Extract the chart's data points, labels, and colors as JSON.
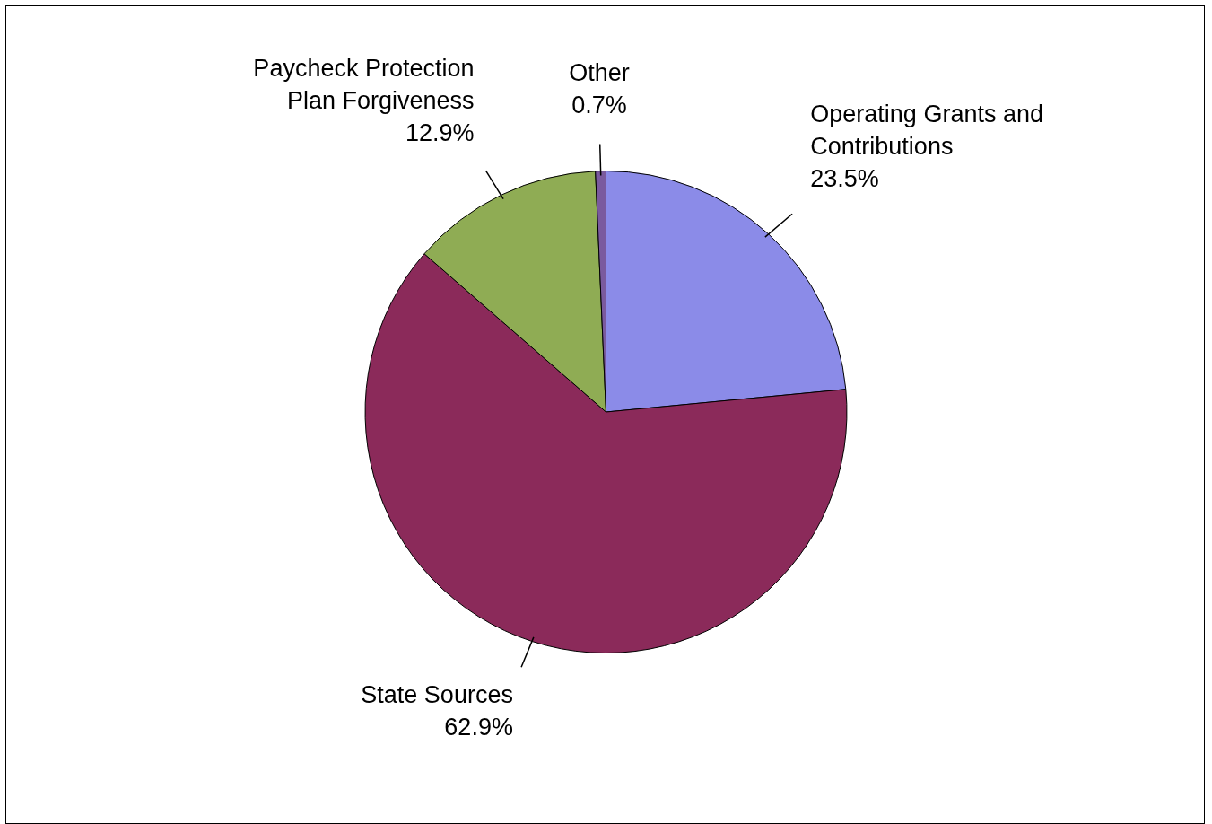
{
  "chart_data": {
    "type": "pie",
    "categories": [
      "Operating Grants and Contributions",
      "State Sources",
      "Paycheck Protection Plan Forgiveness",
      "Other"
    ],
    "values": [
      23.5,
      62.9,
      12.9,
      0.7
    ],
    "value_labels": [
      "23.5%",
      "62.9%",
      "12.9%",
      "0.7%"
    ],
    "colors": [
      "#8b8be8",
      "#8b2a5a",
      "#8fac54",
      "#7a5a9e"
    ],
    "legend": false
  }
}
